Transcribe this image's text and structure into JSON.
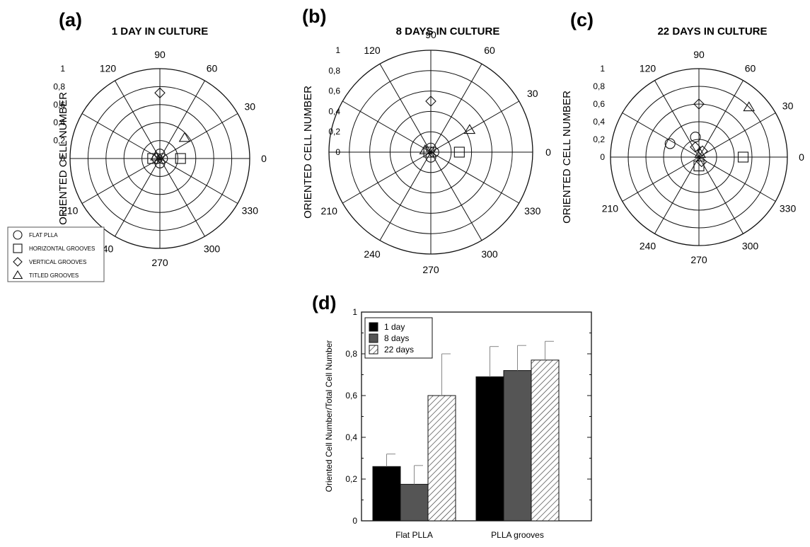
{
  "panels": [
    {
      "label": "(a)",
      "chart_data": {
        "type": "scatter",
        "coordinate_system": "polar",
        "title": "1 DAY IN CULTURE",
        "ylabel": "ORIENTED CELL NUMBER",
        "r_ticks": [
          "0",
          "0,2",
          "0,4",
          "0,6",
          "0,8",
          "1"
        ],
        "rlim": [
          0,
          1
        ],
        "angle_labels": [
          "0",
          "30",
          "60",
          "90",
          "120",
          "210",
          "240",
          "270",
          "300",
          "330"
        ],
        "angle_label_texts": [
          "0",
          "30",
          "60",
          "90",
          "120",
          "210",
          "40",
          "270",
          "300",
          "330"
        ],
        "series": [
          {
            "name": "FLAT PLLA",
            "marker": "circle",
            "points": [
              [
                90,
                0.05
              ],
              [
                270,
                0.05
              ],
              [
                0,
                0.03
              ],
              [
                180,
                0.03
              ]
            ]
          },
          {
            "name": "HORIZONTAL GROOVES",
            "marker": "square",
            "points": [
              [
                0,
                0.23
              ],
              [
                180,
                0.08
              ]
            ]
          },
          {
            "name": "VERTICAL GROOVES",
            "marker": "diamond",
            "points": [
              [
                90,
                0.73
              ]
            ]
          },
          {
            "name": "TITLED GROOVES",
            "marker": "triangle",
            "points": [
              [
                40,
                0.36
              ],
              [
                150,
                0.05
              ]
            ]
          }
        ]
      }
    },
    {
      "label": "(b)",
      "chart_data": {
        "type": "scatter",
        "coordinate_system": "polar",
        "title": "8 DAYS IN CULTURE",
        "ylabel": "ORIENTED CELL NUMBER",
        "r_ticks": [
          "0",
          "0,2",
          "0,4",
          "0,6",
          "0,8",
          "1"
        ],
        "rlim": [
          0,
          1
        ],
        "angle_labels": [
          "0",
          "30",
          "60",
          "90",
          "120",
          "210",
          "240",
          "270",
          "300",
          "330"
        ],
        "series": [
          {
            "name": "FLAT PLLA",
            "marker": "circle",
            "points": [
              [
                90,
                0.04
              ],
              [
                270,
                0.05
              ],
              [
                0,
                0.03
              ]
            ]
          },
          {
            "name": "HORIZONTAL GROOVES",
            "marker": "square",
            "points": [
              [
                0,
                0.28
              ],
              [
                180,
                0.02
              ]
            ]
          },
          {
            "name": "VERTICAL GROOVES",
            "marker": "diamond",
            "points": [
              [
                90,
                0.5
              ]
            ]
          },
          {
            "name": "TITLED GROOVES",
            "marker": "triangle",
            "points": [
              [
                30,
                0.44
              ],
              [
                160,
                0.06
              ]
            ]
          }
        ]
      }
    },
    {
      "label": "(c)",
      "chart_data": {
        "type": "scatter",
        "coordinate_system": "polar",
        "title": "22 DAYS IN CULTURE",
        "ylabel": "ORIENTED CELL NUMBER",
        "r_ticks": [
          "0",
          "0,2",
          "0,4",
          "0,6",
          "0,8",
          "1"
        ],
        "rlim": [
          0,
          1
        ],
        "angle_labels": [
          "0",
          "30",
          "60",
          "90",
          "120",
          "210",
          "240",
          "270",
          "300",
          "330"
        ],
        "series": [
          {
            "name": "FLAT PLLA",
            "marker": "circle",
            "points": [
              [
                155,
                0.36
              ],
              [
                100,
                0.23
              ]
            ]
          },
          {
            "name": "HORIZONTAL GROOVES",
            "marker": "square",
            "points": [
              [
                0,
                0.5
              ],
              [
                270,
                0.1
              ]
            ]
          },
          {
            "name": "VERTICAL GROOVES",
            "marker": "diamond",
            "points": [
              [
                90,
                0.6
              ],
              [
                110,
                0.12
              ],
              [
                60,
                0.08
              ],
              [
                300,
                0.06
              ]
            ]
          },
          {
            "name": "TITLED GROOVES",
            "marker": "triangle",
            "points": [
              [
                45,
                0.8
              ],
              [
                70,
                0.04
              ]
            ]
          }
        ]
      }
    }
  ],
  "legend": {
    "items": [
      {
        "marker": "circle",
        "label": "FLAT PLLA"
      },
      {
        "marker": "square",
        "label": "HORIZONTAL GROOVES"
      },
      {
        "marker": "diamond",
        "label": "VERTICAL GROOVES"
      },
      {
        "marker": "triangle",
        "label": "TITLED GROOVES"
      }
    ]
  },
  "bar_panel": {
    "label": "(d)",
    "chart_data": {
      "type": "bar",
      "categories": [
        "Flat PLLA",
        "PLLA grooves"
      ],
      "ylabel": "Oriented Cell Number/Total Cell Number",
      "ylim": [
        0,
        1
      ],
      "y_ticks": [
        "0",
        "0,2",
        "0,4",
        "0,6",
        "0,8",
        "1"
      ],
      "legend_position": "top-left",
      "series": [
        {
          "name": "1 day",
          "color": "#000000",
          "pattern": "solid",
          "values": [
            0.26,
            0.69
          ],
          "errors": [
            0.06,
            0.145
          ]
        },
        {
          "name": "8 days",
          "color": "#555555",
          "pattern": "solid",
          "values": [
            0.175,
            0.72
          ],
          "errors": [
            0.09,
            0.12
          ]
        },
        {
          "name": "22 days",
          "color": "#ffffff",
          "pattern": "hatch",
          "values": [
            0.6,
            0.77
          ],
          "errors": [
            0.2,
            0.09
          ]
        }
      ]
    }
  }
}
